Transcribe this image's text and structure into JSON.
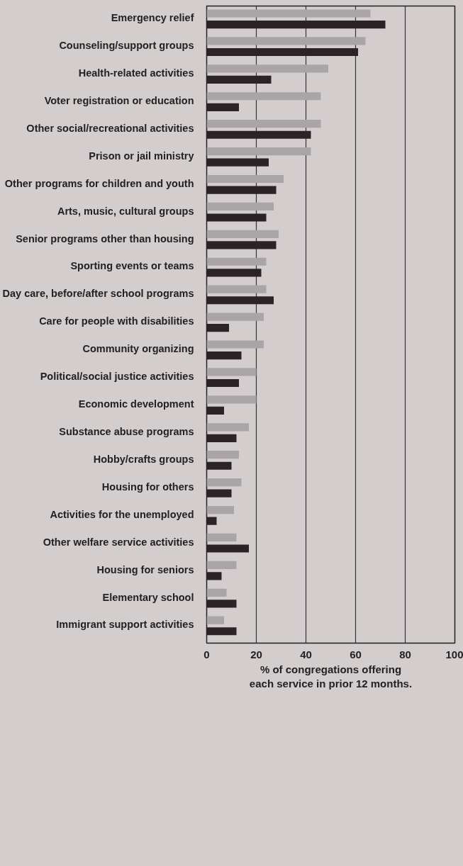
{
  "chart_data": {
    "type": "bar",
    "orientation": "horizontal",
    "xlabel": "% of congregations offering\neach service in prior 12 months.",
    "categories": [
      "Emergency relief",
      "Counseling/support groups",
      "Health-related activities",
      "Voter registration or education",
      "Other social/recreational activities",
      "Prison or jail ministry",
      "Other programs for children and youth",
      "Arts, music, cultural groups",
      "Senior programs other than housing",
      "Sporting events or teams",
      "Day care, before/after school programs",
      "Care for people with disabilities",
      "Community organizing",
      "Political/social justice activities",
      "Economic development",
      "Substance abuse programs",
      "Hobby/crafts groups",
      "Housing for others",
      "Activities for the unemployed",
      "Other welfare service activities",
      "Housing for seniors",
      "Elementary school",
      "Immigrant support activities"
    ],
    "series": [
      {
        "color": "#a9a5a7",
        "values": [
          66,
          64,
          49,
          46,
          46,
          42,
          31,
          27,
          29,
          24,
          24,
          23,
          23,
          20,
          20,
          17,
          13,
          14,
          11,
          12,
          12,
          8,
          7
        ]
      },
      {
        "color": "#2b2325",
        "values": [
          72,
          61,
          26,
          13,
          42,
          25,
          28,
          24,
          28,
          22,
          27,
          9,
          14,
          13,
          7,
          12,
          10,
          10,
          4,
          17,
          6,
          12,
          12
        ]
      }
    ],
    "xlim": [
      0,
      100
    ],
    "xticks": [
      0,
      20,
      40,
      60,
      80,
      100
    ],
    "grid": "x"
  }
}
